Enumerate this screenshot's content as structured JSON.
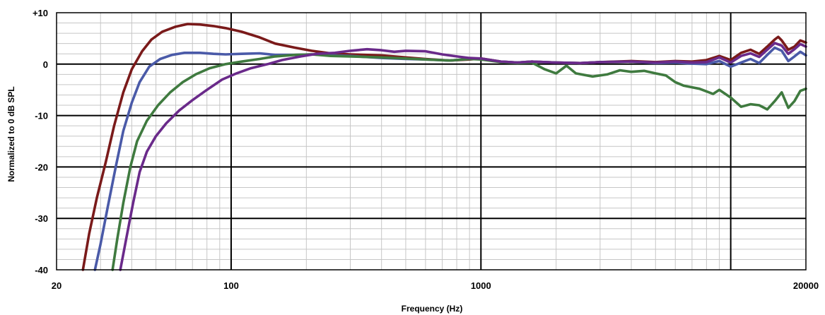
{
  "chart_data": {
    "type": "line",
    "title": "",
    "xlabel": "Frequency (Hz)",
    "ylabel": "Normalized to 0 dB SPL",
    "x_scale": "log",
    "xlim": [
      20,
      20000
    ],
    "ylim": [
      -40,
      10
    ],
    "x_ticks": [
      {
        "value": 20,
        "label": "20"
      },
      {
        "value": 100,
        "label": "100"
      },
      {
        "value": 1000,
        "label": "1000"
      },
      {
        "value": 20000,
        "label": "20000"
      }
    ],
    "y_ticks": [
      {
        "value": 10,
        "label": "+10"
      },
      {
        "value": 0,
        "label": "0"
      },
      {
        "value": -10,
        "label": "-10"
      },
      {
        "value": -20,
        "label": "-20"
      },
      {
        "value": -30,
        "label": "-30"
      },
      {
        "value": -40,
        "label": "-40"
      }
    ],
    "grid": true,
    "legend": "none",
    "series": [
      {
        "color": "#7a1a1a",
        "points": [
          [
            25.5,
            -40
          ],
          [
            27,
            -33
          ],
          [
            29,
            -26
          ],
          [
            31.5,
            -19
          ],
          [
            34,
            -12
          ],
          [
            37,
            -5.5
          ],
          [
            40,
            -1
          ],
          [
            44,
            2.5
          ],
          [
            48,
            4.8
          ],
          [
            53,
            6.3
          ],
          [
            60,
            7.3
          ],
          [
            67,
            7.8
          ],
          [
            75,
            7.7
          ],
          [
            85,
            7.4
          ],
          [
            95,
            7.0
          ],
          [
            110,
            6.3
          ],
          [
            130,
            5.2
          ],
          [
            150,
            4.0
          ],
          [
            180,
            3.2
          ],
          [
            210,
            2.6
          ],
          [
            250,
            2.1
          ],
          [
            300,
            1.9
          ],
          [
            400,
            1.7
          ],
          [
            500,
            1.3
          ],
          [
            600,
            1.0
          ],
          [
            750,
            0.7
          ],
          [
            900,
            0.9
          ],
          [
            1000,
            1.1
          ],
          [
            1200,
            0.5
          ],
          [
            1400,
            0.3
          ],
          [
            1600,
            0.5
          ],
          [
            2000,
            0.3
          ],
          [
            2500,
            0.2
          ],
          [
            3000,
            0.4
          ],
          [
            4000,
            0.6
          ],
          [
            5000,
            0.4
          ],
          [
            6000,
            0.6
          ],
          [
            7000,
            0.5
          ],
          [
            8000,
            0.8
          ],
          [
            9000,
            1.6
          ],
          [
            10000,
            0.8
          ],
          [
            11000,
            2.2
          ],
          [
            12000,
            2.8
          ],
          [
            13000,
            2.0
          ],
          [
            14000,
            3.4
          ],
          [
            15000,
            4.8
          ],
          [
            15500,
            5.3
          ],
          [
            16000,
            4.6
          ],
          [
            17000,
            2.8
          ],
          [
            18000,
            3.4
          ],
          [
            19000,
            4.6
          ],
          [
            20000,
            4.2
          ]
        ]
      },
      {
        "color": "#4a5aa8",
        "points": [
          [
            28.5,
            -40
          ],
          [
            30,
            -35
          ],
          [
            32,
            -28
          ],
          [
            34.5,
            -20
          ],
          [
            37,
            -13
          ],
          [
            40,
            -7.5
          ],
          [
            43,
            -3.5
          ],
          [
            47,
            -0.5
          ],
          [
            52,
            1.0
          ],
          [
            58,
            1.8
          ],
          [
            65,
            2.2
          ],
          [
            75,
            2.2
          ],
          [
            85,
            2.0
          ],
          [
            95,
            1.9
          ],
          [
            110,
            2.0
          ],
          [
            130,
            2.1
          ],
          [
            150,
            1.8
          ],
          [
            180,
            1.8
          ],
          [
            210,
            1.9
          ],
          [
            250,
            1.7
          ],
          [
            300,
            1.6
          ],
          [
            400,
            1.2
          ],
          [
            500,
            1.0
          ],
          [
            600,
            0.9
          ],
          [
            750,
            0.7
          ],
          [
            900,
            1.0
          ],
          [
            1000,
            1.0
          ],
          [
            1200,
            0.5
          ],
          [
            1400,
            0.3
          ],
          [
            1600,
            0.5
          ],
          [
            2000,
            0.3
          ],
          [
            2500,
            0.2
          ],
          [
            3000,
            0.4
          ],
          [
            4000,
            0.5
          ],
          [
            5000,
            0.2
          ],
          [
            6000,
            0.3
          ],
          [
            7000,
            0.1
          ],
          [
            8000,
            0.0
          ],
          [
            9000,
            0.6
          ],
          [
            10000,
            -0.5
          ],
          [
            11000,
            0.3
          ],
          [
            12000,
            1.0
          ],
          [
            13000,
            0.2
          ],
          [
            14000,
            1.8
          ],
          [
            15000,
            3.2
          ],
          [
            16000,
            2.6
          ],
          [
            17000,
            0.6
          ],
          [
            18000,
            1.5
          ],
          [
            19000,
            2.4
          ],
          [
            20000,
            1.7
          ]
        ]
      },
      {
        "color": "#3f7a3f",
        "points": [
          [
            33.5,
            -40
          ],
          [
            35,
            -34
          ],
          [
            37,
            -27
          ],
          [
            39.5,
            -20
          ],
          [
            42,
            -15
          ],
          [
            46,
            -11
          ],
          [
            51,
            -8
          ],
          [
            57,
            -5.5
          ],
          [
            64,
            -3.5
          ],
          [
            72,
            -2.0
          ],
          [
            82,
            -0.8
          ],
          [
            95,
            0.0
          ],
          [
            110,
            0.5
          ],
          [
            130,
            1.0
          ],
          [
            150,
            1.5
          ],
          [
            180,
            1.8
          ],
          [
            210,
            1.9
          ],
          [
            250,
            1.6
          ],
          [
            300,
            1.5
          ],
          [
            400,
            1.3
          ],
          [
            500,
            1.1
          ],
          [
            600,
            0.9
          ],
          [
            750,
            0.7
          ],
          [
            900,
            1.0
          ],
          [
            1000,
            0.9
          ],
          [
            1200,
            0.4
          ],
          [
            1400,
            0.2
          ],
          [
            1600,
            0.3
          ],
          [
            1800,
            -1.0
          ],
          [
            2000,
            -1.8
          ],
          [
            2200,
            -0.3
          ],
          [
            2400,
            -1.8
          ],
          [
            2800,
            -2.4
          ],
          [
            3200,
            -2.0
          ],
          [
            3600,
            -1.2
          ],
          [
            4000,
            -1.5
          ],
          [
            4500,
            -1.3
          ],
          [
            5000,
            -1.8
          ],
          [
            5500,
            -2.2
          ],
          [
            6000,
            -3.5
          ],
          [
            6500,
            -4.2
          ],
          [
            7000,
            -4.5
          ],
          [
            7500,
            -4.8
          ],
          [
            8000,
            -5.3
          ],
          [
            8500,
            -5.8
          ],
          [
            9000,
            -5.0
          ],
          [
            10000,
            -6.5
          ],
          [
            11000,
            -8.3
          ],
          [
            12000,
            -7.8
          ],
          [
            13000,
            -8.0
          ],
          [
            14000,
            -8.8
          ],
          [
            15000,
            -7.2
          ],
          [
            16000,
            -5.5
          ],
          [
            17000,
            -8.5
          ],
          [
            18000,
            -7.2
          ],
          [
            19000,
            -5.2
          ],
          [
            20000,
            -4.8
          ]
        ]
      },
      {
        "color": "#6a2a8a",
        "points": [
          [
            36,
            -40
          ],
          [
            38,
            -34
          ],
          [
            40.5,
            -27
          ],
          [
            43,
            -21
          ],
          [
            46,
            -17
          ],
          [
            50,
            -14
          ],
          [
            55,
            -11.5
          ],
          [
            62,
            -9
          ],
          [
            70,
            -7
          ],
          [
            80,
            -5
          ],
          [
            92,
            -3
          ],
          [
            105,
            -1.8
          ],
          [
            120,
            -0.8
          ],
          [
            140,
            0.0
          ],
          [
            160,
            0.8
          ],
          [
            190,
            1.5
          ],
          [
            220,
            2.0
          ],
          [
            260,
            2.2
          ],
          [
            300,
            2.6
          ],
          [
            350,
            2.9
          ],
          [
            400,
            2.7
          ],
          [
            450,
            2.4
          ],
          [
            500,
            2.6
          ],
          [
            600,
            2.5
          ],
          [
            700,
            1.9
          ],
          [
            800,
            1.5
          ],
          [
            900,
            1.2
          ],
          [
            1000,
            1.1
          ],
          [
            1200,
            0.5
          ],
          [
            1400,
            0.3
          ],
          [
            1600,
            0.5
          ],
          [
            2000,
            0.3
          ],
          [
            2500,
            0.2
          ],
          [
            3000,
            0.4
          ],
          [
            4000,
            0.5
          ],
          [
            5000,
            0.3
          ],
          [
            6000,
            0.5
          ],
          [
            7000,
            0.3
          ],
          [
            8000,
            0.4
          ],
          [
            9000,
            1.3
          ],
          [
            10000,
            0.3
          ],
          [
            11000,
            1.6
          ],
          [
            12000,
            2.1
          ],
          [
            13000,
            1.4
          ],
          [
            14000,
            2.8
          ],
          [
            15000,
            4.1
          ],
          [
            16000,
            3.6
          ],
          [
            17000,
            2.0
          ],
          [
            18000,
            2.9
          ],
          [
            19000,
            3.9
          ],
          [
            20000,
            3.4
          ]
        ]
      }
    ]
  }
}
